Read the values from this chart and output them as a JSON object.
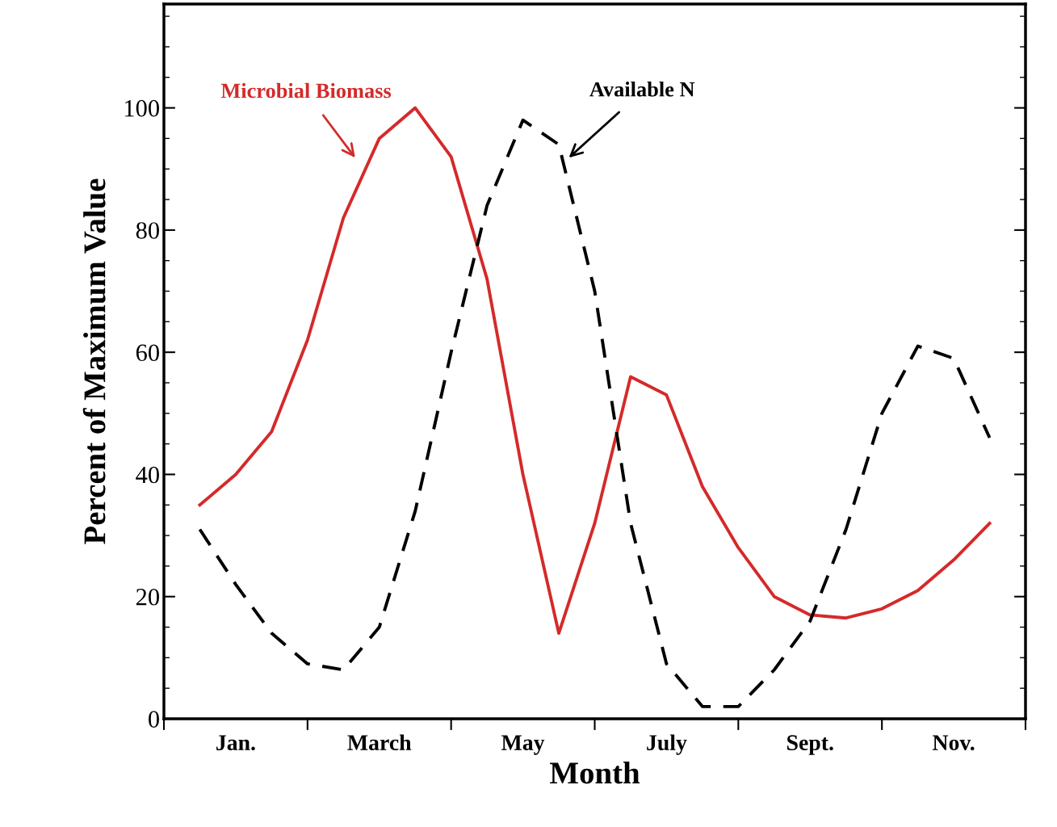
{
  "chart_data": {
    "type": "line",
    "xlabel": "Month",
    "ylabel": "Percent of Maximum Value",
    "categories": [
      null,
      null,
      "Jan.",
      null,
      null,
      null,
      "March",
      null,
      null,
      null,
      "May",
      null,
      null,
      null,
      "July",
      null,
      null,
      null,
      "Sept.",
      null,
      null,
      null,
      "Nov.",
      null,
      null
    ],
    "ylim": [
      0,
      117
    ],
    "yticks": [
      0,
      20,
      40,
      60,
      80,
      100
    ],
    "grid": false,
    "legend": false,
    "marker": "none",
    "series": [
      {
        "color": "#d42a2a",
        "line_style": "solid",
        "values": [
          null,
          35,
          40,
          47,
          62,
          82,
          95,
          100,
          92,
          72,
          40,
          14,
          32,
          56,
          53,
          38,
          28,
          20,
          17,
          16.5,
          18,
          21,
          26,
          32,
          null
        ]
      },
      {
        "color": "#000000",
        "line_style": "dashed",
        "values": [
          null,
          31,
          22,
          14,
          9,
          8,
          15,
          34,
          60,
          84,
          98,
          94,
          70,
          32,
          9,
          2,
          2,
          8,
          16,
          31,
          50,
          61,
          59,
          46,
          null
        ]
      }
    ],
    "annotations": [
      "Microbial Biomass",
      "Available N"
    ]
  }
}
